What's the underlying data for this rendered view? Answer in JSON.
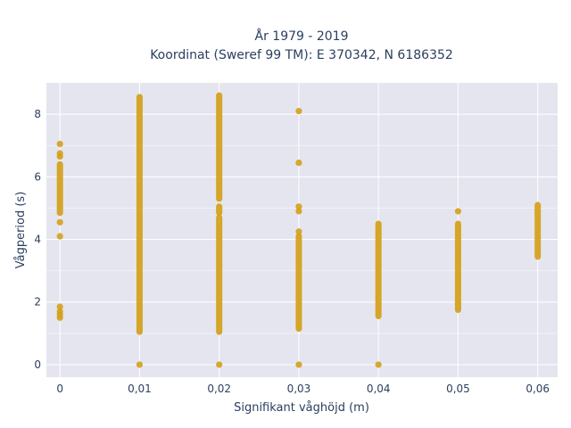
{
  "chart_data": {
    "type": "scatter",
    "title_line1": "År 1979 - 2019",
    "title_line2": "Koordinat (Sweref 99 TM): E 370342, N 6186352",
    "xlabel": "Signifikant våghöjd (m)",
    "ylabel": "Vågperiod (s)",
    "xlim": [
      -0.0017,
      0.0625
    ],
    "ylim": [
      -0.4,
      9.0
    ],
    "x_ticks": [
      0,
      0.01,
      0.02,
      0.03,
      0.04,
      0.05,
      0.06
    ],
    "x_tick_labels": [
      "0",
      "0,01",
      "0,02",
      "0,03",
      "0,04",
      "0,05",
      "0,06"
    ],
    "y_ticks": [
      0,
      2,
      4,
      6,
      8
    ],
    "y_tick_labels": [
      "0",
      "2",
      "4",
      "6",
      "8"
    ],
    "grid": true,
    "marker_color": "#d4a017",
    "plot_background": "#e5e5f0",
    "columns": [
      {
        "x": 0,
        "ranges": [
          [
            4.85,
            6.4
          ]
        ],
        "points": [
          1.5,
          1.6,
          1.7,
          1.85,
          4.1,
          4.55,
          6.65,
          6.75,
          7.05
        ]
      },
      {
        "x": 0.01,
        "ranges": [
          [
            1.05,
            8.55
          ]
        ],
        "points": [
          0
        ]
      },
      {
        "x": 0.02,
        "ranges": [
          [
            1.05,
            4.7
          ],
          [
            4.85,
            5.05
          ],
          [
            5.3,
            8.6
          ]
        ],
        "points": [
          0
        ]
      },
      {
        "x": 0.03,
        "ranges": [
          [
            1.15,
            4.1
          ]
        ],
        "points": [
          0,
          4.25,
          4.9,
          5.05,
          6.45,
          8.1
        ]
      },
      {
        "x": 0.04,
        "ranges": [
          [
            1.55,
            4.5
          ]
        ],
        "points": [
          0
        ]
      },
      {
        "x": 0.05,
        "ranges": [
          [
            1.75,
            4.5
          ]
        ],
        "points": [
          4.9
        ]
      },
      {
        "x": 0.06,
        "ranges": [
          [
            3.45,
            5.1
          ]
        ],
        "points": []
      }
    ]
  }
}
